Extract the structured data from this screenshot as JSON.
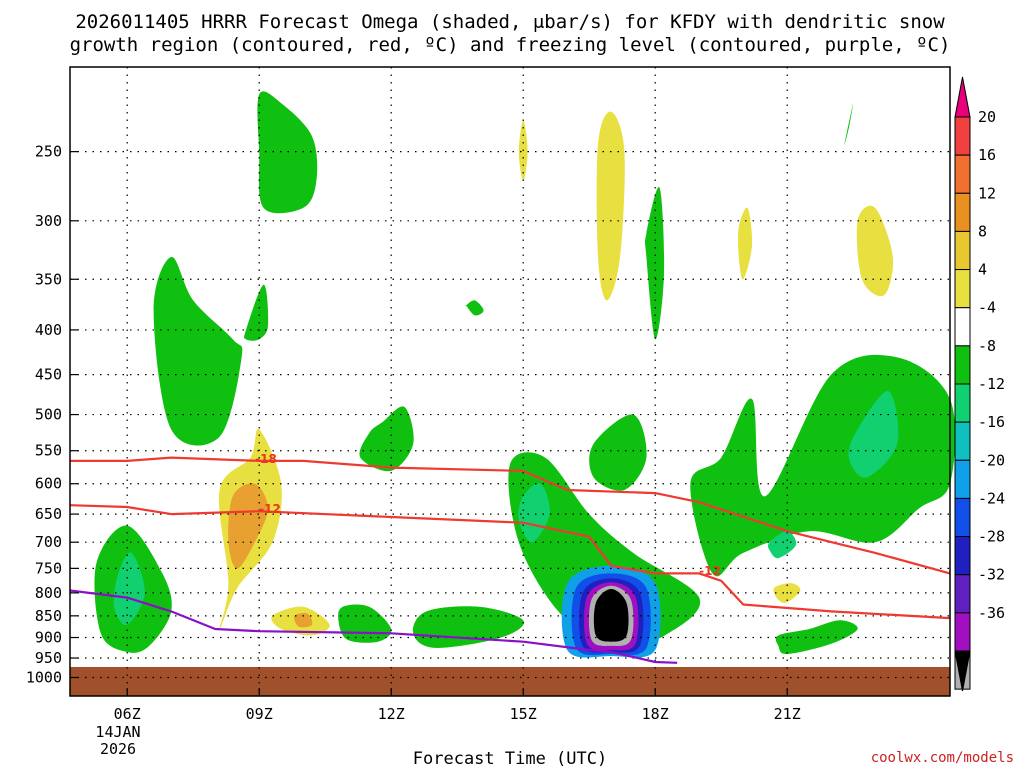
{
  "chart_data": {
    "type": "time-height contour",
    "title_line1": "2026011405 HRRR Forecast Omega (shaded, μbar/s) for KFDY with dendritic snow",
    "title_line2": "growth region (contoured, red, ºC) and freezing level (contoured, purple, ºC)",
    "xlabel": "Forecast Time (UTC)",
    "date_line1": "14JAN",
    "date_line2": "2026",
    "watermark": "coolwx.com/models",
    "x_range_hours": [
      4.7,
      24.7
    ],
    "x_ticks": [
      {
        "label": "06Z",
        "hour": 6
      },
      {
        "label": "09Z",
        "hour": 9
      },
      {
        "label": "12Z",
        "hour": 12
      },
      {
        "label": "15Z",
        "hour": 15
      },
      {
        "label": "18Z",
        "hour": 18
      },
      {
        "label": "21Z",
        "hour": 21
      }
    ],
    "y_ticks_hpa": [
      "250",
      "300",
      "350",
      "400",
      "450",
      "500",
      "550",
      "600",
      "650",
      "700",
      "750",
      "800",
      "850",
      "900",
      "950",
      "1000"
    ],
    "y_range_hpa": [
      200,
      1050
    ],
    "colorbar": {
      "labels": [
        "20",
        "16",
        "12",
        "8",
        "4",
        "-4",
        "-8",
        "-12",
        "-16",
        "-20",
        "-24",
        "-28",
        "-32",
        "-36"
      ],
      "colors": [
        "#e8007a",
        "#f04040",
        "#f07030",
        "#e89020",
        "#e8c830",
        "#e8e040",
        "#ffffff",
        "#10c010",
        "#10d070",
        "#10c0c0",
        "#10a0e8",
        "#1050e8",
        "#2020c0",
        "#6020c0",
        "#a010c0",
        "#b0b0b0",
        "#000000"
      ]
    },
    "contour_labels": [
      "-18",
      "-12",
      "-12"
    ],
    "dgz_top": {
      "name": "-18 C",
      "hours": [
        4.7,
        6,
        7,
        9,
        10,
        12,
        15,
        16,
        18,
        19,
        21,
        23,
        24.7
      ],
      "hpa": [
        565,
        565,
        560,
        565,
        565,
        575,
        580,
        610,
        615,
        630,
        680,
        720,
        760
      ]
    },
    "dgz_bottom": {
      "name": "-12 C",
      "hours": [
        4.7,
        6,
        7,
        9,
        12,
        15,
        16.5,
        17,
        18,
        19,
        19.5,
        20,
        22,
        24.7
      ],
      "hpa": [
        635,
        638,
        650,
        645,
        655,
        665,
        690,
        745,
        760,
        760,
        775,
        825,
        840,
        855
      ]
    },
    "freezing_level": {
      "name": "freezing level",
      "hours": [
        4.7,
        6,
        7,
        8,
        9,
        12,
        15,
        16.5,
        17,
        18,
        18.5
      ],
      "hpa": [
        795,
        810,
        840,
        880,
        885,
        890,
        910,
        930,
        935,
        960,
        962
      ]
    },
    "omega_areas": [
      {
        "id": "green-upper-09z",
        "level": -8,
        "color": "#10c010",
        "hours": [
          9,
          9.5,
          10.2,
          10.3,
          10,
          9.1,
          9
        ],
        "hpa": [
          215,
          220,
          240,
          270,
          290,
          290,
          250
        ]
      },
      {
        "id": "green-small-09z",
        "level": -8,
        "color": "#10c010",
        "hours": [
          8.7,
          9.1,
          9.2,
          9,
          8.7
        ],
        "hpa": [
          400,
          355,
          395,
          410,
          410
        ]
      },
      {
        "id": "green-left-07z",
        "level": -8,
        "color": "#10c010",
        "hours": [
          7,
          7.5,
          8.4,
          8.6,
          8.1,
          7,
          6.6
        ],
        "hpa": [
          330,
          370,
          410,
          430,
          530,
          520,
          380
        ]
      },
      {
        "id": "green-small-14z",
        "level": -8,
        "color": "#10c010",
        "hours": [
          13.7,
          13.9,
          14.1,
          13.9,
          13.7
        ],
        "hpa": [
          375,
          385,
          380,
          370,
          375
        ]
      },
      {
        "id": "green-mid-12z",
        "level": -8,
        "color": "#10c010",
        "hours": [
          11.8,
          12.3,
          12.5,
          12,
          11.3,
          11.5
        ],
        "hpa": [
          510,
          490,
          540,
          580,
          560,
          525
        ]
      },
      {
        "id": "green-left-06z",
        "level": -8,
        "color": "#10c010",
        "hours": [
          5.3,
          6,
          6.8,
          7,
          6.5,
          6,
          5.4
        ],
        "hpa": [
          740,
          670,
          760,
          840,
          920,
          935,
          890
        ]
      },
      {
        "id": "green-low-12z",
        "level": -8,
        "color": "#10c010",
        "hours": [
          10.9,
          11.5,
          12,
          11.7,
          11,
          10.8
        ],
        "hpa": [
          830,
          830,
          880,
          910,
          905,
          860
        ]
      },
      {
        "id": "green-low-14z",
        "level": -8,
        "color": "#10c010",
        "hours": [
          12.8,
          14,
          15,
          14.5,
          13,
          12.5
        ],
        "hpa": [
          840,
          830,
          860,
          900,
          925,
          890
        ]
      },
      {
        "id": "green-1518z",
        "level": -8,
        "color": "#10c010",
        "hours": [
          14.7,
          15.5,
          16.5,
          17.5,
          19,
          18.3,
          17,
          15.8,
          14.9
        ],
        "hpa": [
          570,
          560,
          650,
          720,
          810,
          890,
          930,
          840,
          700
        ]
      },
      {
        "id": "green-17z",
        "level": -8,
        "color": "#10c010",
        "hours": [
          16.6,
          17.5,
          17.8,
          17.3,
          16.6
        ],
        "hpa": [
          540,
          500,
          560,
          610,
          590
        ]
      },
      {
        "id": "green-18z-column",
        "level": -8,
        "color": "#10c010",
        "hours": [
          17.8,
          18.1,
          18.2,
          18,
          17.8
        ],
        "hpa": [
          310,
          275,
          345,
          410,
          330
        ]
      },
      {
        "id": "green-right",
        "level": -8,
        "color": "#10c010",
        "hours": [
          18.8,
          19.5,
          20.2,
          20.5,
          22,
          23.5,
          24.7,
          24.7,
          24,
          23,
          21.5,
          20,
          19.3
        ],
        "hpa": [
          600,
          560,
          480,
          620,
          450,
          430,
          480,
          600,
          640,
          700,
          680,
          720,
          760
        ]
      },
      {
        "id": "green-lower-right",
        "level": -8,
        "color": "#10c010",
        "hours": [
          20.8,
          21.5,
          22.2,
          22.6,
          22,
          21,
          20.8
        ],
        "hpa": [
          895,
          880,
          860,
          880,
          915,
          940,
          920
        ]
      },
      {
        "id": "green-top-right",
        "level": -8,
        "color": "#10c010",
        "hours": [
          22.4,
          22.5,
          22.3
        ],
        "hpa": [
          235,
          220,
          245
        ]
      },
      {
        "id": "teal-0630z",
        "level": -12,
        "color": "#10d070",
        "hours": [
          5.8,
          6.1,
          6.4,
          6,
          5.7
        ],
        "hpa": [
          760,
          720,
          800,
          870,
          830
        ]
      },
      {
        "id": "teal-1530z",
        "level": -12,
        "color": "#10d070",
        "hours": [
          15,
          15.4,
          15.6,
          15.2,
          14.9
        ],
        "hpa": [
          620,
          600,
          650,
          700,
          660
        ]
      },
      {
        "id": "teal-right",
        "level": -12,
        "color": "#10d070",
        "hours": [
          22.6,
          23.3,
          23.5,
          22.8,
          22.4
        ],
        "hpa": [
          520,
          470,
          540,
          590,
          560
        ]
      },
      {
        "id": "teal-2030z",
        "level": -12,
        "color": "#10d070",
        "hours": [
          20.6,
          21,
          21.2,
          20.8,
          20.6
        ],
        "hpa": [
          700,
          680,
          705,
          730,
          715
        ]
      },
      {
        "id": "yellow-0830z",
        "level": 4,
        "color": "#e8e040",
        "hours": [
          8.1,
          8.8,
          9,
          9.5,
          9.3,
          8.5,
          8.1,
          8.3
        ],
        "hpa": [
          610,
          560,
          520,
          600,
          700,
          790,
          880,
          780
        ]
      },
      {
        "id": "yellow-10z",
        "level": 4,
        "color": "#e8e040",
        "hours": [
          9.3,
          10,
          10.6,
          10.2,
          9.5
        ],
        "hpa": [
          850,
          830,
          870,
          895,
          880
        ]
      },
      {
        "id": "yellow-17z-column",
        "level": 4,
        "color": "#e8e040",
        "hours": [
          16.7,
          17,
          17.3,
          17.2,
          16.9,
          16.7
        ],
        "hpa": [
          245,
          225,
          250,
          330,
          370,
          330
        ]
      },
      {
        "id": "yellow-15z",
        "level": 4,
        "color": "#e8e040",
        "hours": [
          14.9,
          15,
          15.1,
          15
        ],
        "hpa": [
          250,
          230,
          250,
          270
        ]
      },
      {
        "id": "yellow-20z",
        "level": 4,
        "color": "#e8e040",
        "hours": [
          19.9,
          20.1,
          20.2,
          20,
          19.9
        ],
        "hpa": [
          305,
          290,
          320,
          350,
          330
        ]
      },
      {
        "id": "yellow-2230z",
        "level": 4,
        "color": "#e8e040",
        "hours": [
          22.6,
          23,
          23.4,
          23.2,
          22.7
        ],
        "hpa": [
          300,
          290,
          330,
          365,
          350
        ]
      },
      {
        "id": "yellow-21z-low",
        "level": 4,
        "color": "#e8e040",
        "hours": [
          20.7,
          21.1,
          21.3,
          21,
          20.8
        ],
        "hpa": [
          790,
          780,
          795,
          820,
          815
        ]
      },
      {
        "id": "orange-0830z",
        "level": 8,
        "color": "#e8a030",
        "hours": [
          8.4,
          8.9,
          9.2,
          8.9,
          8.5,
          8.3
        ],
        "hpa": [
          620,
          600,
          640,
          700,
          750,
          700
        ]
      },
      {
        "id": "orange-10z",
        "level": 8,
        "color": "#e8a030",
        "hours": [
          9.8,
          10.1,
          10.2,
          9.9
        ],
        "hpa": [
          850,
          845,
          870,
          875
        ]
      },
      {
        "id": "omega-core-1a",
        "level": -16,
        "color": "#10a0e8",
        "hours": [
          16,
          17,
          18,
          18,
          17,
          16
        ],
        "hpa": [
          780,
          745,
          780,
          930,
          945,
          930
        ]
      },
      {
        "id": "omega-core-1b",
        "level": -20,
        "color": "#1050e8",
        "hours": [
          16.2,
          17,
          17.8,
          17.8,
          17,
          16.2
        ],
        "hpa": [
          790,
          760,
          790,
          925,
          940,
          925
        ]
      },
      {
        "id": "omega-core-1c",
        "level": -24,
        "color": "#2020c0",
        "hours": [
          16.35,
          17,
          17.65,
          17.65,
          17,
          16.35
        ],
        "hpa": [
          800,
          770,
          800,
          920,
          935,
          920
        ]
      },
      {
        "id": "omega-core-1d",
        "level": -28,
        "color": "#a010c0",
        "hours": [
          16.45,
          17,
          17.55,
          17.55,
          17,
          16.45
        ],
        "hpa": [
          808,
          778,
          808,
          915,
          930,
          915
        ]
      },
      {
        "id": "omega-core-1e",
        "level": -32,
        "color": "#b0b0b0",
        "hours": [
          16.55,
          17,
          17.45,
          17.45,
          17,
          16.55
        ],
        "hpa": [
          815,
          785,
          815,
          905,
          920,
          905
        ]
      },
      {
        "id": "omega-core-1f",
        "level": -36,
        "color": "#000000",
        "hours": [
          16.65,
          17,
          17.35,
          17.35,
          17,
          16.65
        ],
        "hpa": [
          822,
          792,
          822,
          895,
          910,
          895
        ]
      }
    ]
  }
}
